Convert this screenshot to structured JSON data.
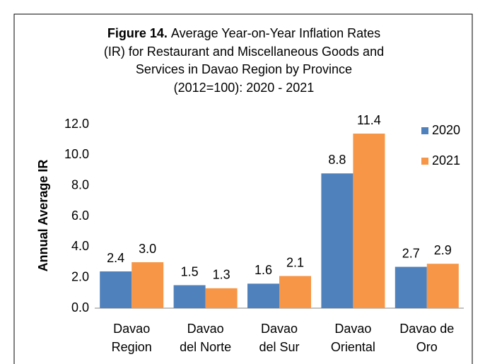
{
  "chart_data": {
    "type": "bar",
    "title": {
      "label": "Figure 14.",
      "lines": [
        "Average Year-on-Year Inflation Rates",
        "(IR) for Restaurant and Miscellaneous Goods and",
        "Services in Davao Region by Province",
        "(2012=100): 2020 - 2021"
      ]
    },
    "ylabel": "Annual Average IR",
    "categories": [
      [
        "Davao",
        "Region"
      ],
      [
        "Davao",
        "del Norte"
      ],
      [
        "Davao",
        "del Sur"
      ],
      [
        "Davao",
        "Oriental"
      ],
      [
        "Davao de",
        "Oro"
      ]
    ],
    "series": [
      {
        "name": "2020",
        "color": "#4f81bd",
        "values": [
          2.4,
          1.5,
          1.6,
          8.8,
          2.7
        ],
        "value_labels": [
          "2.4",
          "1.5",
          "1.6",
          "8.8",
          "2.7"
        ]
      },
      {
        "name": "2021",
        "color": "#f79646",
        "values": [
          3.0,
          1.3,
          2.1,
          11.4,
          2.9
        ],
        "value_labels": [
          "3.0",
          "1.3",
          "2.1",
          "11.4",
          "2.9"
        ]
      }
    ],
    "ylim": [
      0,
      12
    ],
    "yticks": [
      {
        "value": 0,
        "label": "0.0"
      },
      {
        "value": 2,
        "label": "2.0"
      },
      {
        "value": 4,
        "label": "4.0"
      },
      {
        "value": 6,
        "label": "6.0"
      },
      {
        "value": 8,
        "label": "8.0"
      },
      {
        "value": 10,
        "label": "10.0"
      },
      {
        "value": 12,
        "label": "12.0"
      }
    ],
    "grid": false,
    "legend": "right"
  }
}
